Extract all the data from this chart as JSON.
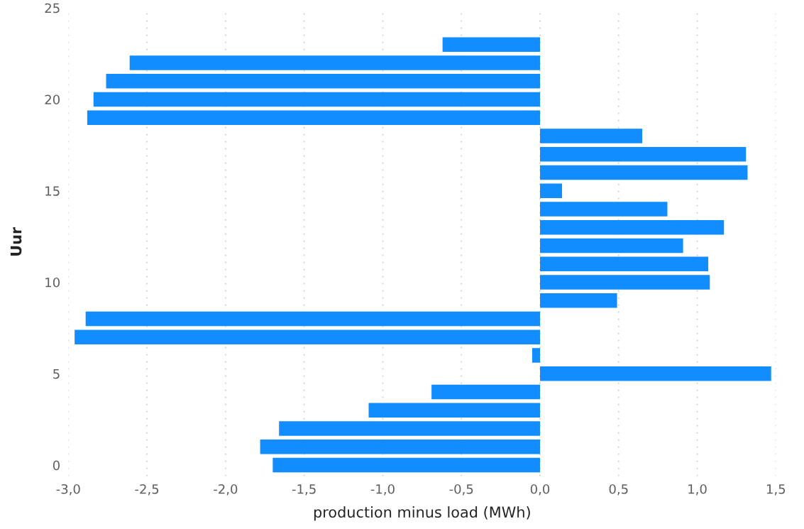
{
  "chart_data": {
    "type": "bar",
    "orientation": "horizontal",
    "xlabel": "production minus load (MWh)",
    "ylabel": "Uur",
    "x": [
      0,
      1,
      2,
      3,
      4,
      5,
      6,
      7,
      8,
      9,
      10,
      11,
      12,
      13,
      14,
      15,
      16,
      17,
      18,
      19,
      20,
      21,
      22,
      23
    ],
    "values": [
      -1.7,
      -1.78,
      -1.66,
      -1.09,
      -0.69,
      1.47,
      -0.05,
      -2.96,
      -2.89,
      0.49,
      1.08,
      1.07,
      0.91,
      1.17,
      0.81,
      0.14,
      1.32,
      1.31,
      0.65,
      -2.88,
      -2.84,
      -2.76,
      -2.61,
      -0.62
    ],
    "color": "#118dff",
    "xlim": [
      -3.0,
      1.5
    ],
    "xticks": [
      {
        "value": -3.0,
        "label": "-3,0"
      },
      {
        "value": -2.5,
        "label": "-2,5"
      },
      {
        "value": -2.0,
        "label": "-2,0"
      },
      {
        "value": -1.5,
        "label": "-1,5"
      },
      {
        "value": -1.0,
        "label": "-1,0"
      },
      {
        "value": -0.5,
        "label": "-0,5"
      },
      {
        "value": 0.0,
        "label": "0,0"
      },
      {
        "value": 0.5,
        "label": "0,5"
      },
      {
        "value": 1.0,
        "label": "1,0"
      },
      {
        "value": 1.5,
        "label": "1,5"
      }
    ],
    "ylim": [
      -0.6,
      25
    ],
    "yticks": [
      0,
      5,
      10,
      15,
      20,
      25
    ],
    "grid": "x"
  }
}
